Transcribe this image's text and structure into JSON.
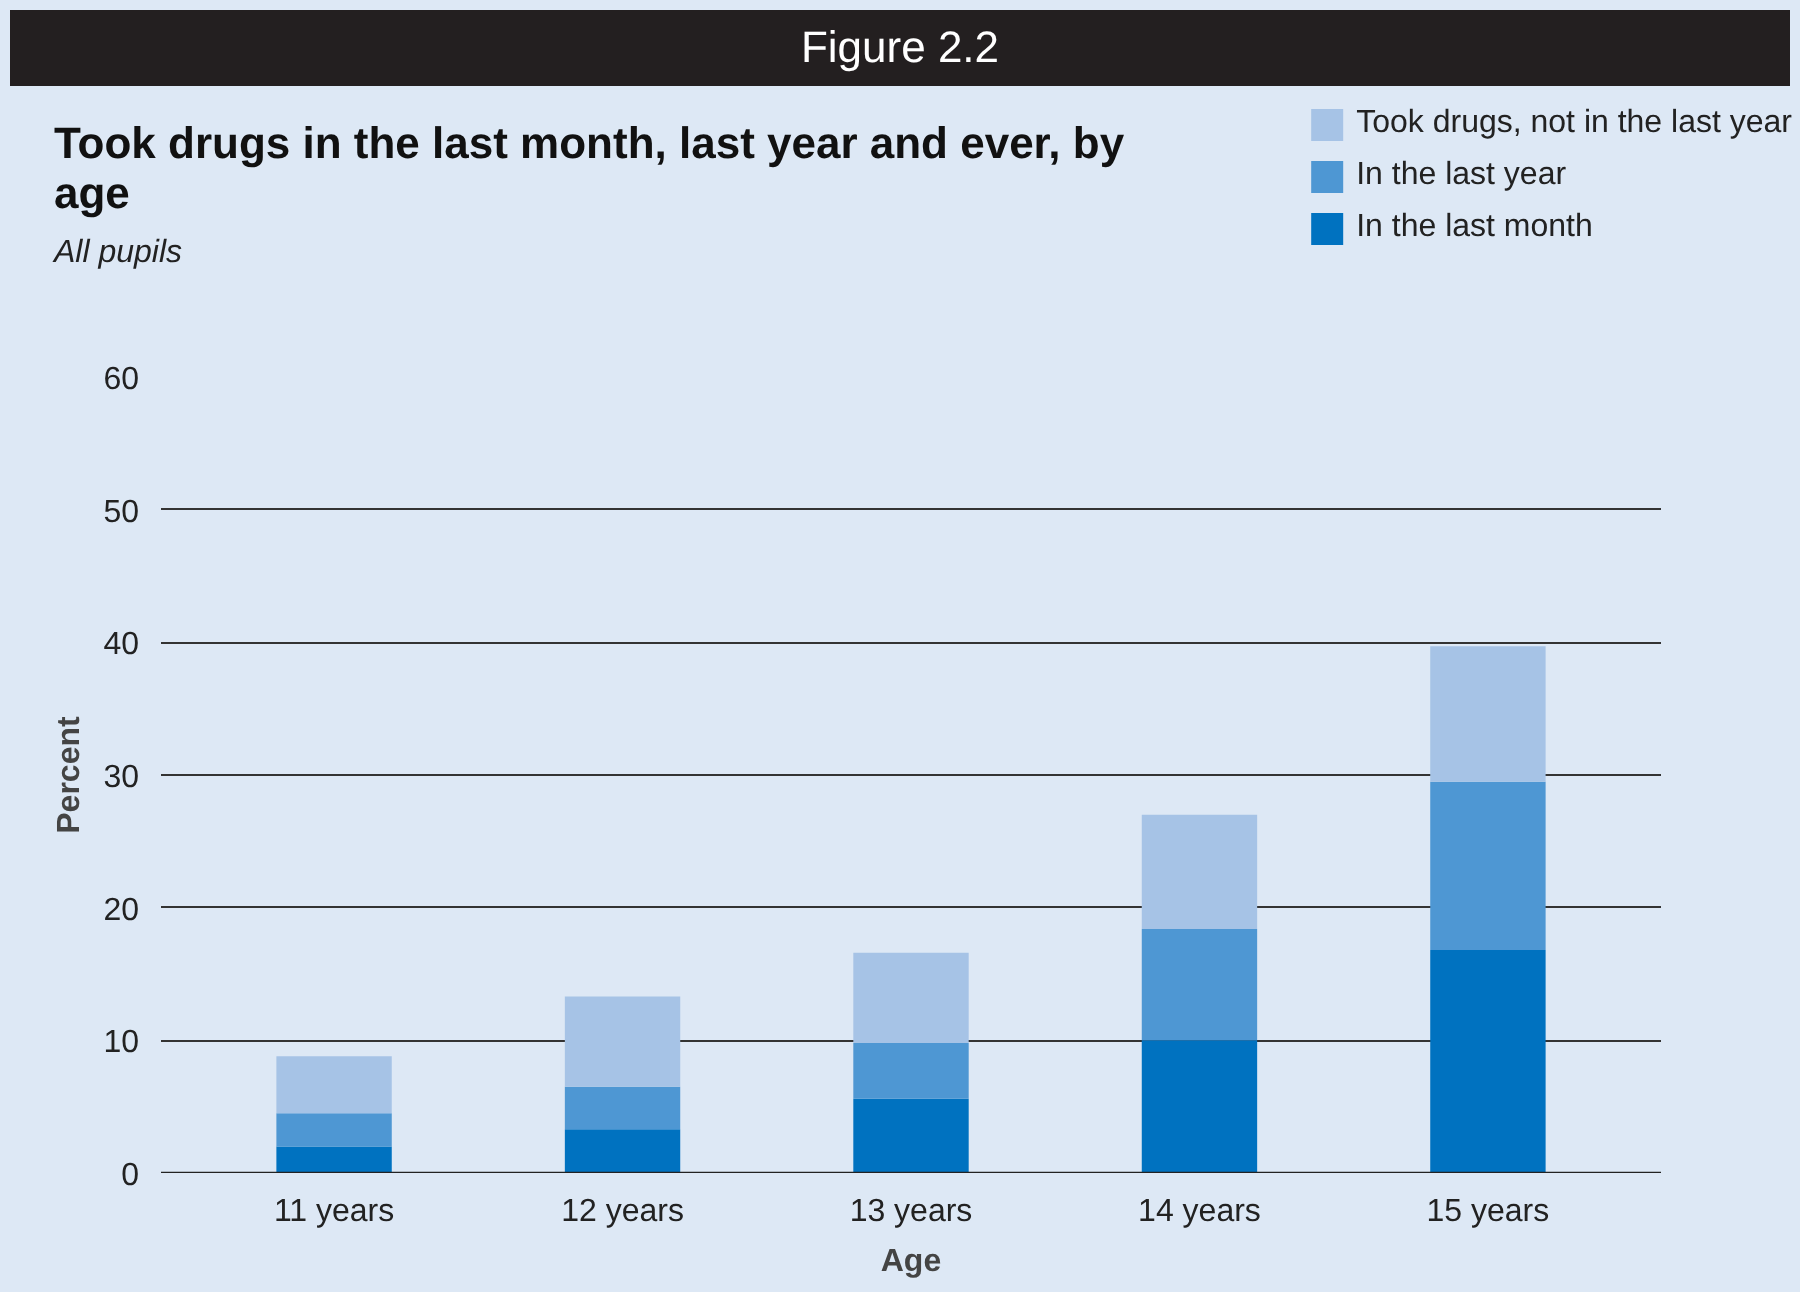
{
  "chart_data": {
    "type": "bar",
    "stacked": true,
    "title": "Took drugs in the last month, last year and ever, by age",
    "subtitle": "All pupils",
    "annotations": [
      "Figure 2.2"
    ],
    "xlabel": "Age",
    "ylabel": "Percent",
    "categories": [
      "11 years",
      "12 years",
      "13 years",
      "14 years",
      "15 years"
    ],
    "series": [
      {
        "name": "In the last month",
        "color": "#0072c0",
        "values": [
          2.0,
          3.3,
          5.6,
          10.0,
          16.8
        ]
      },
      {
        "name": "In the last year",
        "color": "#4e97d3",
        "values": [
          2.5,
          3.2,
          4.2,
          8.4,
          12.7
        ]
      },
      {
        "name": "Took drugs, not in the last year",
        "color": "#a6c3e6",
        "values": [
          4.3,
          6.8,
          6.8,
          8.6,
          10.2
        ]
      }
    ],
    "ylim": [
      0,
      60
    ],
    "yticks": [
      0,
      10,
      20,
      30,
      40,
      50,
      60
    ],
    "grid": "y",
    "legend": "top right"
  }
}
